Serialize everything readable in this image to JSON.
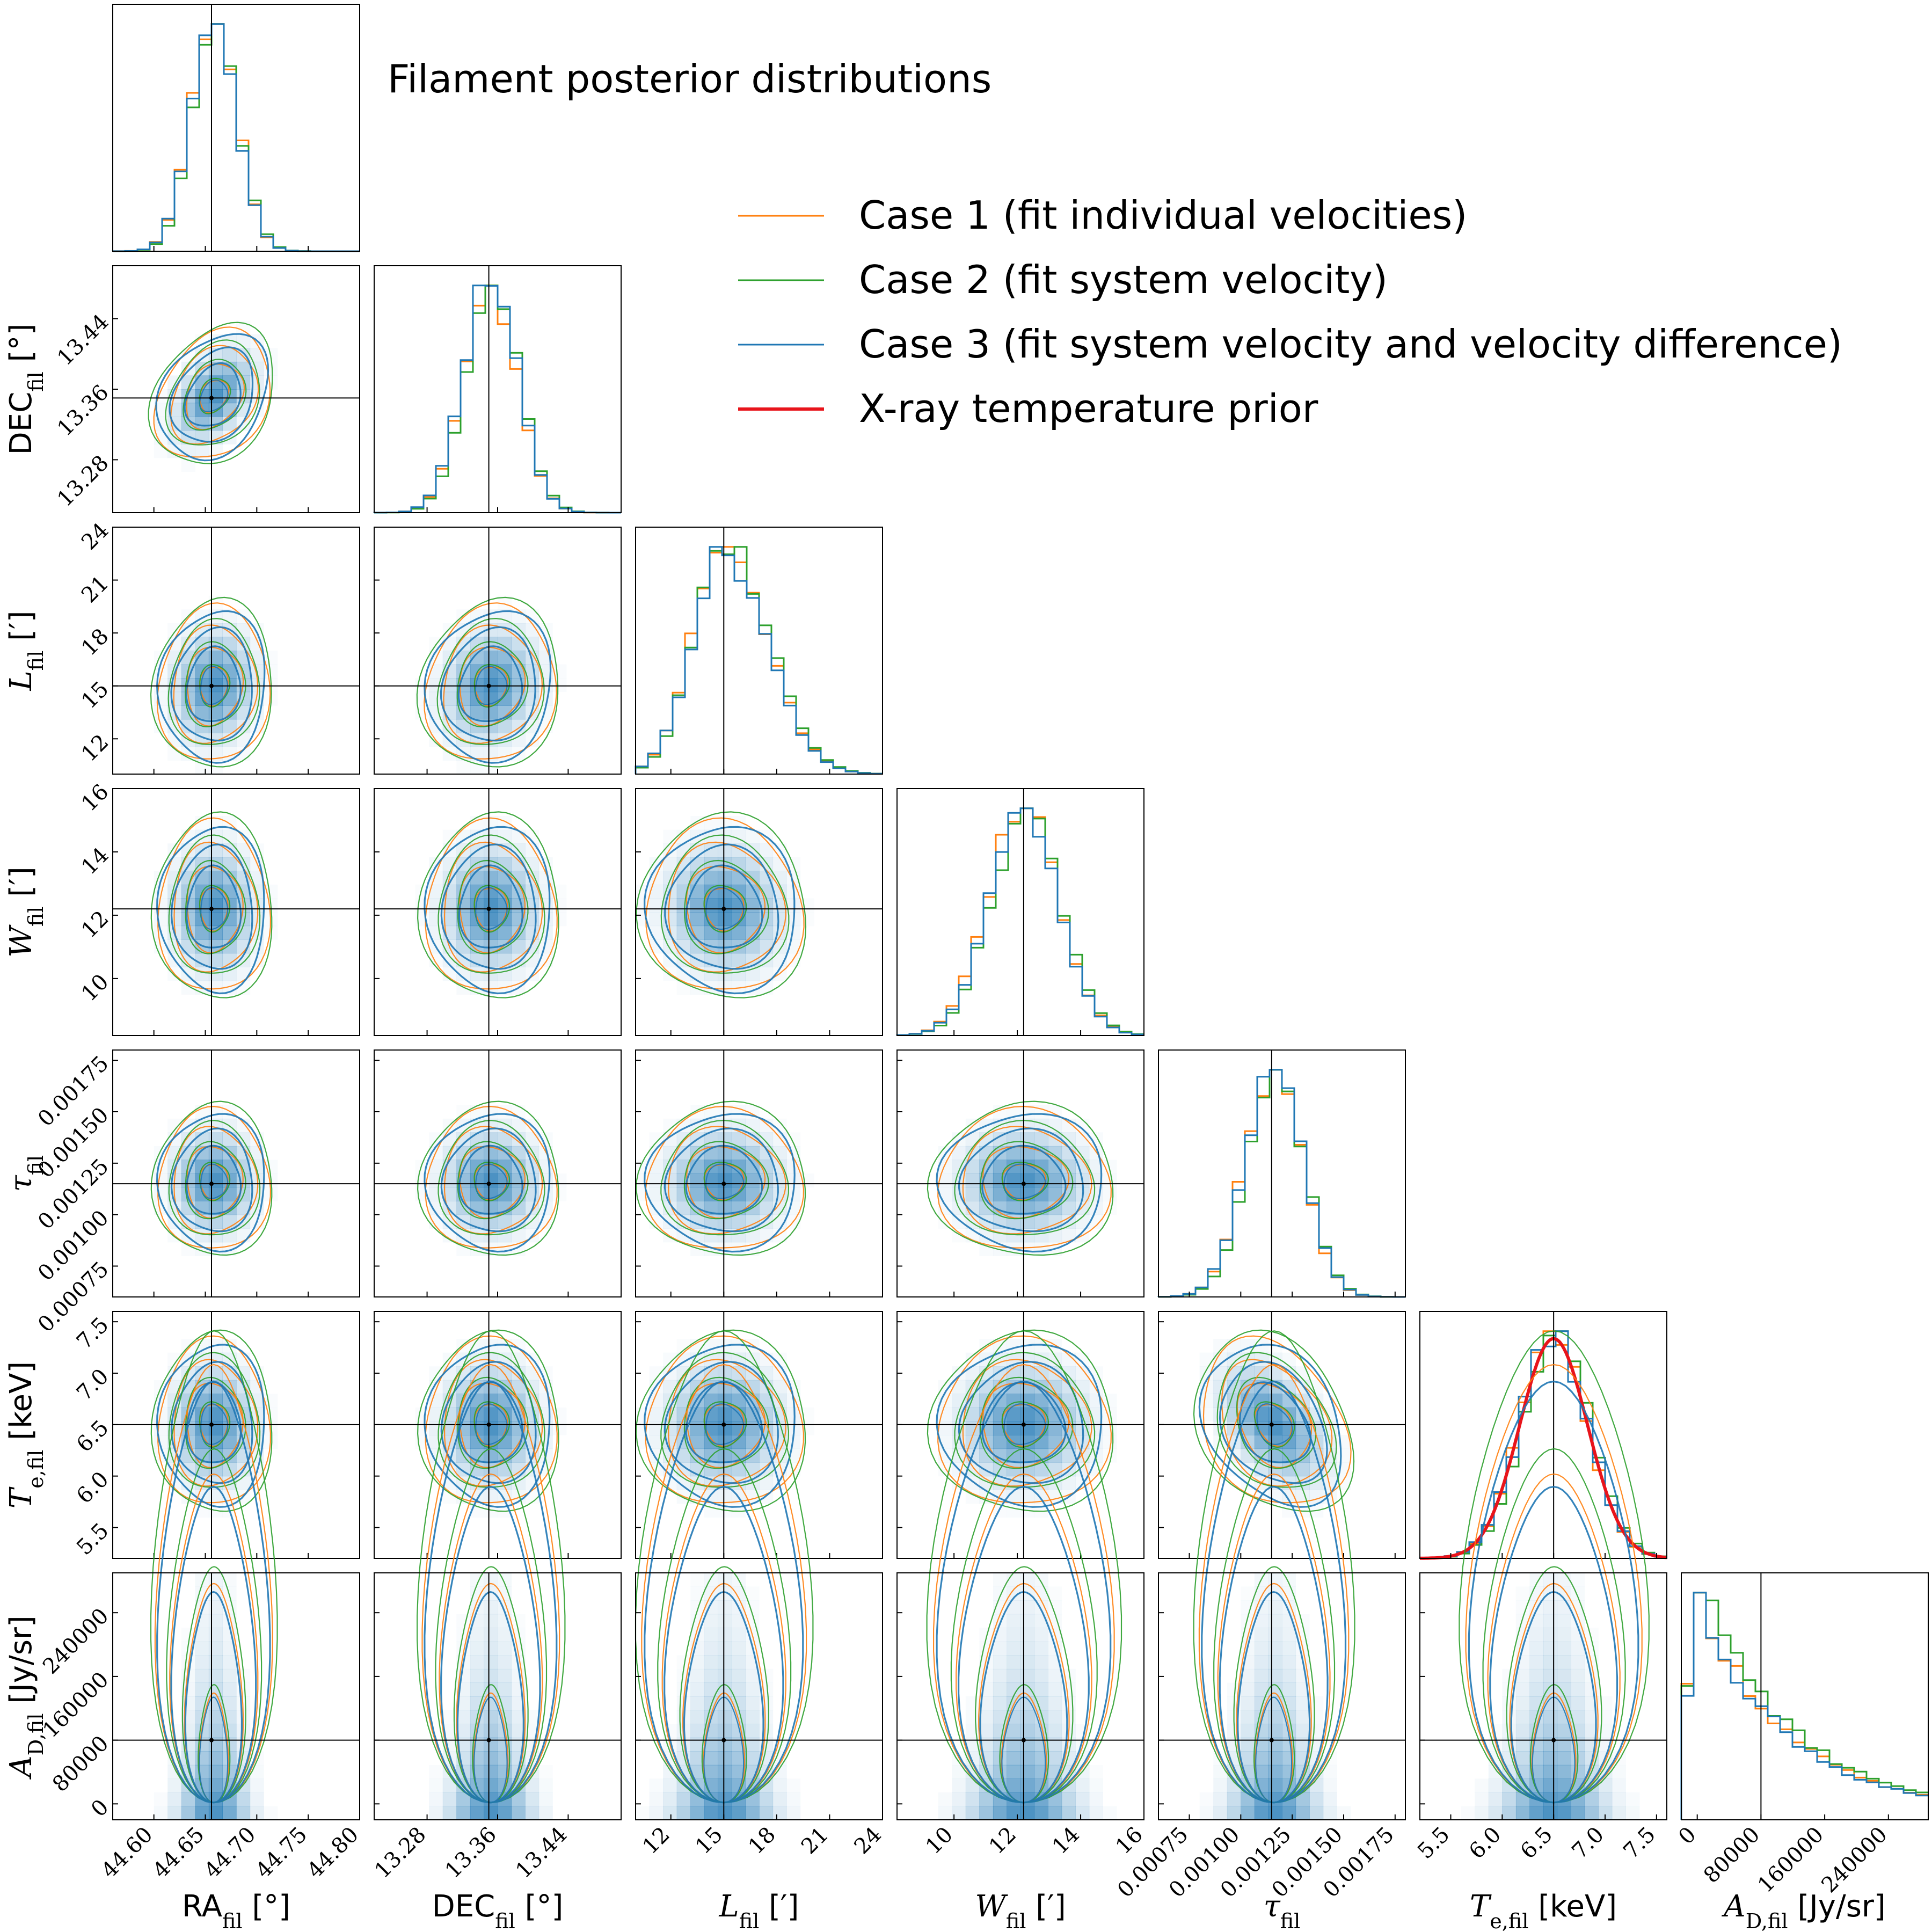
{
  "chart_data": {
    "type": "corner",
    "title": "Filament posterior distributions",
    "colors": {
      "case1": "#ff7f0e",
      "case2": "#2ca02c",
      "case3": "#1f77b4",
      "prior": "#e8141b",
      "truth": "#000000",
      "density": "#1f77b4"
    },
    "legend": [
      {
        "name": "Case 1 (fit individual velocities)",
        "color": "#ff7f0e",
        "width": "thin"
      },
      {
        "name": "Case 2 (fit system velocity)",
        "color": "#2ca02c",
        "width": "thin"
      },
      {
        "name": "Case 3 (fit system velocity and velocity difference)",
        "color": "#1f77b4",
        "width": "thin"
      },
      {
        "name": "X-ray temperature prior",
        "color": "#e8141b",
        "width": "thick"
      }
    ],
    "params": [
      {
        "key": "ra",
        "label": "RA",
        "sub": "fil",
        "unit": " [°]",
        "math": false,
        "range": [
          44.56,
          44.8
        ],
        "truth": 44.656,
        "center": 44.658,
        "sigma": 0.022,
        "ticks": [
          44.6,
          44.65,
          44.7,
          44.75,
          44.8
        ],
        "tick_labels": [
          "44.60",
          "44.65",
          "44.70",
          "44.75",
          "44.80"
        ]
      },
      {
        "key": "dec",
        "label": "DEC",
        "sub": "fil",
        "unit": " [°]",
        "math": false,
        "range": [
          13.22,
          13.5
        ],
        "truth": 13.35,
        "center": 13.352,
        "sigma": 0.03,
        "ticks": [
          13.28,
          13.36,
          13.44
        ],
        "tick_labels": [
          "13.28",
          "13.36",
          "13.44"
        ]
      },
      {
        "key": "L",
        "label": "L",
        "sub": "fil",
        "unit": " [′]",
        "math": true,
        "range": [
          10.0,
          24.0
        ],
        "truth": 15.0,
        "center": 15.0,
        "sigma": 1.8,
        "ticks": [
          12,
          15,
          18,
          21,
          24
        ],
        "tick_labels": [
          "12",
          "15",
          "18",
          "21",
          "24"
        ]
      },
      {
        "key": "W",
        "label": "W",
        "sub": "fil",
        "unit": " [′]",
        "math": true,
        "range": [
          8.2,
          16.0
        ],
        "truth": 12.2,
        "center": 12.2,
        "sigma": 1.1,
        "ticks": [
          10,
          12,
          14,
          16
        ],
        "tick_labels": [
          "10",
          "12",
          "14",
          "16"
        ]
      },
      {
        "key": "tau",
        "label": "τ",
        "sub": "fil",
        "unit": "",
        "math": true,
        "range": [
          0.0006,
          0.0018
        ],
        "truth": 0.00115,
        "center": 0.00116,
        "sigma": 0.00014,
        "ticks": [
          0.00075,
          0.001,
          0.00125,
          0.0015,
          0.00175
        ],
        "tick_labels": [
          "0.00075",
          "0.00100",
          "0.00125",
          "0.00150",
          "0.00175"
        ]
      },
      {
        "key": "Te",
        "label": "T",
        "sub": "e,fil",
        "unit": " [keV]",
        "math": true,
        "range": [
          5.2,
          7.6
        ],
        "truth": 6.5,
        "center": 6.5,
        "sigma": 0.33,
        "ticks": [
          5.5,
          6.0,
          6.5,
          7.0,
          7.5
        ],
        "tick_labels": [
          "5.5",
          "6.0",
          "6.5",
          "7.0",
          "7.5"
        ]
      },
      {
        "key": "AD",
        "label": "A",
        "sub": "D,fil",
        "unit": " [Jy/sr]",
        "math": true,
        "range": [
          -20000,
          290000
        ],
        "truth": 80000,
        "center": 50000,
        "sigma": 70000,
        "ticks": [
          0,
          80000,
          160000,
          240000
        ],
        "tick_labels": [
          "0",
          "80000",
          "160000",
          "240000"
        ]
      }
    ],
    "x_axis_labels": [
      "RA_fil [°]",
      "DEC_fil [°]",
      "L_fil [′]",
      "W_fil [′]",
      "τ_fil",
      "T_e,fil [keV]",
      "A_D,fil [Jy/sr]"
    ],
    "y_axis_labels": [
      "DEC_fil [°]",
      "L_fil [′]",
      "W_fil [′]",
      "τ_fil",
      "T_e,fil [keV]",
      "A_D,fil [Jy/sr]"
    ],
    "prior": {
      "param": "Te",
      "type": "gaussian",
      "mean": 6.5,
      "sigma": 0.33
    },
    "contour_levels_sigma": [
      0.5,
      1.0,
      1.5,
      2.0
    ]
  }
}
